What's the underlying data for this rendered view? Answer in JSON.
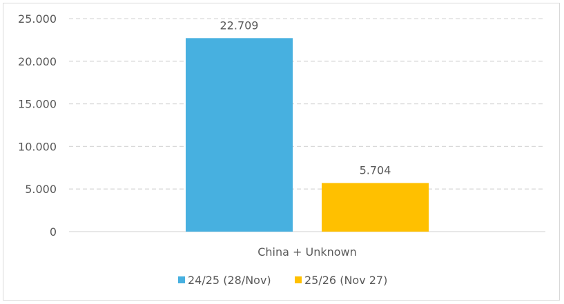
{
  "chart_data": {
    "type": "bar",
    "categories": [
      "China + Unknown"
    ],
    "series": [
      {
        "name": "24/25 (28/Nov)",
        "values": [
          22709
        ],
        "labels": [
          "22.709"
        ],
        "color": "#47b0e0"
      },
      {
        "name": "25/26 (Nov 27)",
        "values": [
          5704
        ],
        "labels": [
          "5.704"
        ],
        "color": "#ffc000"
      }
    ],
    "ylim": [
      0,
      25000
    ],
    "yticks": [
      0,
      5000,
      10000,
      15000,
      20000,
      25000
    ],
    "ytick_labels": [
      "0",
      "5.000",
      "10.000",
      "15.000",
      "20.000",
      "25.000"
    ],
    "grid": true,
    "legend": "bottom",
    "title": "",
    "xlabel": "",
    "ylabel": ""
  }
}
